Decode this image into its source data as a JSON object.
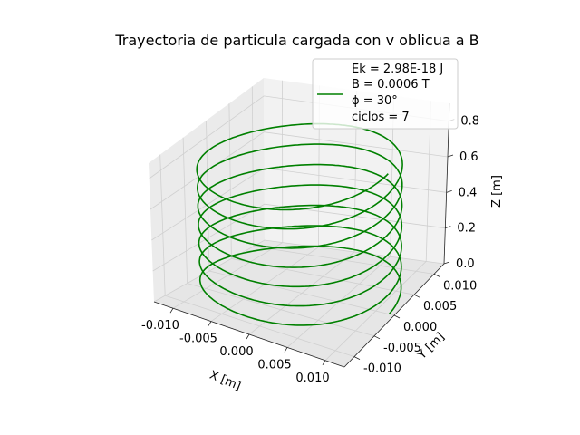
{
  "chart_data": {
    "type": "line3d",
    "title": "Trayectoria de particula cargada con v oblicua a B",
    "xlabel": "X [m]",
    "ylabel": "Y [m]",
    "zlabel": "Z [m]",
    "xlim": [
      -0.0125,
      0.0125
    ],
    "ylim": [
      -0.0125,
      0.0125
    ],
    "zlim": [
      0,
      0.9
    ],
    "xticks": [
      "-0.010",
      "-0.005",
      "0.000",
      "0.005",
      "0.010"
    ],
    "yticks": [
      "-0.010",
      "-0.005",
      "0.000",
      "0.005",
      "0.010"
    ],
    "zticks": [
      "0.0",
      "0.2",
      "0.4",
      "0.6",
      "0.8"
    ],
    "grid": true,
    "legend_position": "top-right",
    "series": [
      {
        "name": "Ek = 2.98E-18 J\nB = 0.0006 T\nϕ = 30°\nciclos = 7",
        "color": "#008000",
        "helix": {
          "radius": 0.0118,
          "z_start": 0.0,
          "z_end": 0.8,
          "turns": 7
        }
      }
    ],
    "legend_lines": [
      "Ek = 2.98E-18 J",
      "B = 0.0006 T",
      "ϕ = 30°",
      "ciclos = 7"
    ],
    "pane_colors": [
      "#f2f2f2",
      "#ebebeb",
      "#e6e6e6"
    ]
  }
}
